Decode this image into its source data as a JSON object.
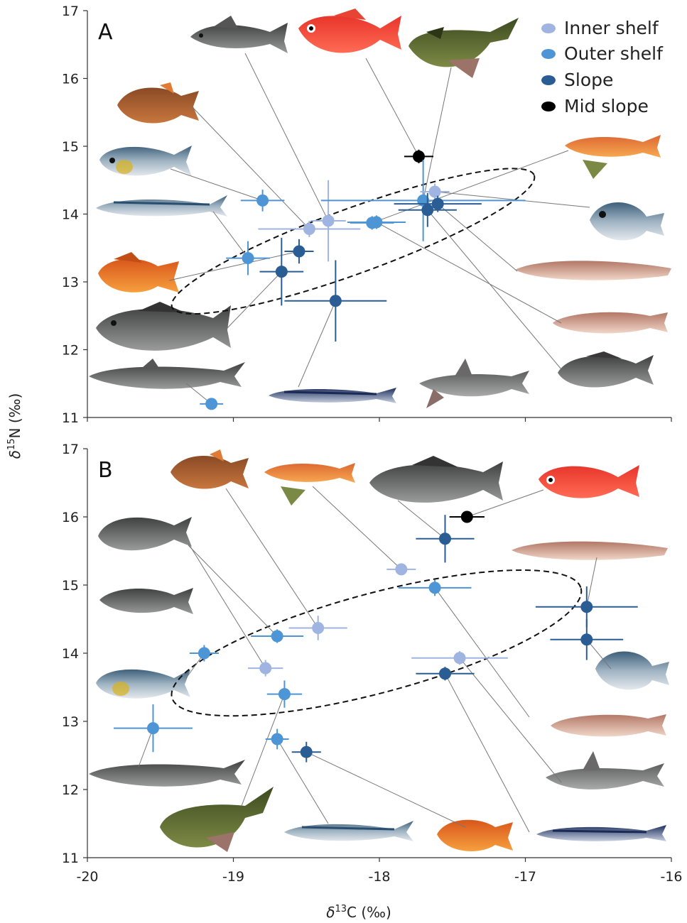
{
  "colors": {
    "inner_shelf": "#9fb4e0",
    "outer_shelf": "#4e95d6",
    "slope": "#2b5d95",
    "mid_slope": "#000000"
  },
  "legend": [
    {
      "label": "Inner shelf",
      "color": "#9fb4e0"
    },
    {
      "label": "Outer shelf",
      "color": "#4e95d6"
    },
    {
      "label": "Slope",
      "color": "#2b5d95"
    },
    {
      "label": "Mid slope",
      "color": "#000000"
    }
  ],
  "chart_data": [
    {
      "type": "scatter",
      "panel": "A",
      "xlabel": "δ13C (‰)",
      "ylabel": "δ15N (‰)",
      "xlim": [
        -20,
        -16
      ],
      "ylim": [
        11,
        17
      ],
      "x_ticks": [
        "-20",
        "-19",
        "-18",
        "-17",
        "-16"
      ],
      "y_ticks": [
        "11",
        "12",
        "13",
        "14",
        "15",
        "16",
        "17"
      ],
      "ellipse": {
        "cx": -18.18,
        "cy": 13.6,
        "rx": 1.32,
        "ry": 0.48,
        "angle_deg": -20
      },
      "points": [
        {
          "group": "outer_shelf",
          "x": -18.8,
          "y": 14.2,
          "xerr": 0.15,
          "yerr": 0.16,
          "fish": "silvery-bream"
        },
        {
          "group": "outer_shelf",
          "x": -18.9,
          "y": 13.35,
          "xerr": 0.15,
          "yerr": 0.25,
          "fish": "snoek-mackerel"
        },
        {
          "group": "slope",
          "x": -18.55,
          "y": 13.45,
          "xerr": 0.1,
          "yerr": 0.18,
          "fish": "scorpionfish"
        },
        {
          "group": "slope",
          "x": -18.67,
          "y": 13.15,
          "xerr": 0.15,
          "yerr": 0.5,
          "fish": "grouper"
        },
        {
          "group": "inner_shelf",
          "x": -18.48,
          "y": 13.78,
          "xerr": 0.35,
          "yerr": 0.12,
          "fish": "leatherjacket"
        },
        {
          "group": "inner_shelf",
          "x": -18.35,
          "y": 13.9,
          "xerr": 0.12,
          "yerr": 0.6,
          "fish": "roughy-fish"
        },
        {
          "group": "slope",
          "x": -18.3,
          "y": 12.72,
          "xerr": 0.35,
          "yerr": 0.6,
          "fish": "frostfish"
        },
        {
          "group": "outer_shelf",
          "x": -18.05,
          "y": 13.87,
          "xerr": 0.15,
          "yerr": 0.1,
          "fish": "gurnard"
        },
        {
          "group": "outer_shelf",
          "x": -18.02,
          "y": 13.88,
          "xerr": 0.2,
          "yerr": 0.1,
          "fish": "ling"
        },
        {
          "group": "mid_slope",
          "x": -17.73,
          "y": 14.85,
          "xerr": 0.1,
          "yerr": 0.1,
          "fish": "alfonsino"
        },
        {
          "group": "outer_shelf",
          "x": -17.7,
          "y": 14.2,
          "xerr": 0.7,
          "yerr": 0.6,
          "fish": "stargazer"
        },
        {
          "group": "inner_shelf",
          "x": -17.62,
          "y": 14.33,
          "xerr": 0.1,
          "yerr": 0.12,
          "fish": "red-gurnard"
        },
        {
          "group": "slope",
          "x": -17.6,
          "y": 14.15,
          "xerr": 0.3,
          "yerr": 0.12,
          "fish": "dory"
        },
        {
          "group": "slope",
          "x": -17.67,
          "y": 14.06,
          "xerr": 0.2,
          "yerr": 0.25,
          "fish": "cusk-eel"
        },
        {
          "group": "outer_shelf",
          "x": -19.15,
          "y": 11.2,
          "xerr": 0.08,
          "yerr": 0.07,
          "fish": "dogfish-shark"
        }
      ]
    },
    {
      "type": "scatter",
      "panel": "B",
      "xlabel": "δ13C (‰)",
      "ylabel": "δ15N (‰)",
      "xlim": [
        -20,
        -16
      ],
      "ylim": [
        11,
        17
      ],
      "x_ticks": [
        "-20",
        "-19",
        "-18",
        "-17",
        "-16"
      ],
      "y_ticks": [
        "11",
        "12",
        "13",
        "14",
        "15",
        "16",
        "17"
      ],
      "ellipse": {
        "cx": -18.02,
        "cy": 14.15,
        "rx": 1.45,
        "ry": 0.73,
        "angle_deg": -15
      },
      "points": [
        {
          "group": "mid_slope",
          "x": -17.4,
          "y": 16.0,
          "xerr": 0.12,
          "yerr": 0.07,
          "fish": "alfonsino"
        },
        {
          "group": "slope",
          "x": -17.55,
          "y": 15.68,
          "xerr": 0.2,
          "yerr": 0.35,
          "fish": "grouper"
        },
        {
          "group": "inner_shelf",
          "x": -17.85,
          "y": 15.23,
          "xerr": 0.1,
          "yerr": 0.08,
          "fish": "red-gurnard"
        },
        {
          "group": "outer_shelf",
          "x": -17.62,
          "y": 14.96,
          "xerr": 0.25,
          "yerr": 0.12,
          "fish": "ling"
        },
        {
          "group": "slope",
          "x": -16.58,
          "y": 14.68,
          "xerr": 0.35,
          "yerr": 0.3,
          "fish": "cusk-eel"
        },
        {
          "group": "slope",
          "x": -16.58,
          "y": 14.2,
          "xerr": 0.25,
          "yerr": 0.3,
          "fish": "dory"
        },
        {
          "group": "inner_shelf",
          "x": -18.42,
          "y": 14.37,
          "xerr": 0.2,
          "yerr": 0.18,
          "fish": "leatherjacket"
        },
        {
          "group": "outer_shelf",
          "x": -18.7,
          "y": 14.25,
          "xerr": 0.18,
          "yerr": 0.1,
          "fish": "roughy-fish"
        },
        {
          "group": "outer_shelf",
          "x": -19.2,
          "y": 14.0,
          "xerr": 0.1,
          "yerr": 0.12,
          "fish": "silvery-bream"
        },
        {
          "group": "inner_shelf",
          "x": -18.78,
          "y": 13.78,
          "xerr": 0.12,
          "yerr": 0.12,
          "fish": "seabream"
        },
        {
          "group": "inner_shelf",
          "x": -17.45,
          "y": 13.93,
          "xerr": 0.33,
          "yerr": 0.1,
          "fish": "frostfish-alt"
        },
        {
          "group": "slope",
          "x": -17.55,
          "y": 13.7,
          "xerr": 0.2,
          "yerr": 0.1,
          "fish": "ghost-shark"
        },
        {
          "group": "outer_shelf",
          "x": -18.65,
          "y": 13.4,
          "xerr": 0.12,
          "yerr": 0.2,
          "fish": "stargazer"
        },
        {
          "group": "outer_shelf",
          "x": -19.55,
          "y": 12.9,
          "xerr": 0.27,
          "yerr": 0.35,
          "fish": "dogfish-shark"
        },
        {
          "group": "outer_shelf",
          "x": -18.7,
          "y": 12.74,
          "xerr": 0.08,
          "yerr": 0.15,
          "fish": "snoek-mackerel"
        },
        {
          "group": "slope",
          "x": -18.5,
          "y": 12.55,
          "xerr": 0.1,
          "yerr": 0.15,
          "fish": "scorpionfish"
        }
      ]
    }
  ],
  "panels": [
    {
      "label": "A"
    },
    {
      "label": "B"
    }
  ],
  "axes": {
    "x_title_prefix": "δ",
    "x_title_sup": "13",
    "x_title_main": "C (‰)",
    "y_title_prefix": "δ",
    "y_title_sup": "15",
    "y_title_main": "N (‰)"
  }
}
